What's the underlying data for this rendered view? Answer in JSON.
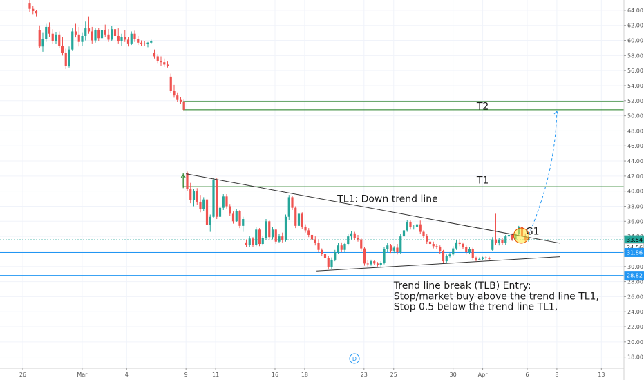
{
  "chart_data": {
    "type": "candlestick",
    "y_axis": {
      "ylim": [
        16.5,
        65
      ],
      "ticks": [
        "18.00",
        "20.00",
        "22.00",
        "24.00",
        "26.00",
        "28.00",
        "30.00",
        "32.00",
        "34.00",
        "36.00",
        "38.00",
        "40.00",
        "42.00",
        "44.00",
        "46.00",
        "48.00",
        "50.00",
        "52.00",
        "54.00",
        "56.00",
        "58.00",
        "60.00",
        "62.00",
        "64.00"
      ],
      "tick_values": [
        18,
        20,
        22,
        24,
        26,
        28,
        30,
        32,
        34,
        36,
        38,
        40,
        42,
        44,
        46,
        48,
        50,
        52,
        54,
        56,
        58,
        60,
        62,
        64
      ],
      "price_tags": [
        {
          "value": 33.54,
          "label": "33.54",
          "color": "#26a69a",
          "text_color": "#000000"
        },
        {
          "value": 32.55,
          "label": "24:56",
          "color": "#ffffff",
          "text_color": "#333333"
        },
        {
          "value": 31.86,
          "label": "31.86",
          "color": "#2196f3",
          "text_color": "#ffffff"
        },
        {
          "value": 28.82,
          "label": "28.82",
          "color": "#2196f3",
          "text_color": "#ffffff"
        }
      ]
    },
    "x_axis": {
      "labels": [
        {
          "i": 0,
          "t": "26"
        },
        {
          "i": 4,
          "t": "Mar"
        },
        {
          "i": 7,
          "t": "4"
        },
        {
          "i": 11,
          "t": "9"
        },
        {
          "i": 13,
          "t": "11"
        },
        {
          "i": 17,
          "t": "16"
        },
        {
          "i": 19,
          "t": "18"
        },
        {
          "i": 23,
          "t": "23"
        },
        {
          "i": 25,
          "t": "25"
        },
        {
          "i": 29,
          "t": "30"
        },
        {
          "i": 31,
          "t": "Apr"
        },
        {
          "i": 34,
          "t": "6"
        },
        {
          "i": 36,
          "t": "8"
        },
        {
          "i": 39,
          "t": "13"
        }
      ]
    },
    "candles": [
      [
        64.9,
        65.5,
        63.8,
        64.2
      ],
      [
        64.2,
        64.6,
        63.5,
        63.9
      ],
      [
        63.9,
        64.0,
        63.2,
        63.6
      ],
      [
        61.4,
        62.0,
        59.0,
        59.2
      ],
      [
        59.2,
        61.0,
        58.5,
        60.2
      ],
      [
        60.2,
        62.2,
        59.8,
        61.8
      ],
      [
        61.8,
        62.4,
        60.5,
        60.9
      ],
      [
        60.9,
        61.5,
        59.5,
        59.9
      ],
      [
        59.9,
        61.1,
        59.5,
        60.8
      ],
      [
        60.8,
        61.2,
        59.0,
        59.3
      ],
      [
        59.3,
        60.5,
        58.0,
        58.4
      ],
      [
        58.4,
        58.9,
        56.2,
        56.6
      ],
      [
        56.6,
        59.2,
        56.4,
        58.8
      ],
      [
        58.8,
        61.6,
        58.6,
        61.2
      ],
      [
        61.2,
        62.2,
        60.4,
        60.8
      ],
      [
        60.8,
        61.8,
        59.2,
        59.8
      ],
      [
        59.8,
        61.0,
        59.3,
        60.6
      ],
      [
        60.6,
        62.5,
        60.0,
        61.6
      ],
      [
        61.6,
        63.2,
        60.9,
        61.2
      ],
      [
        61.2,
        61.8,
        59.6,
        60.0
      ],
      [
        60.0,
        61.6,
        59.7,
        61.4
      ],
      [
        61.4,
        61.7,
        59.9,
        60.3
      ],
      [
        60.3,
        61.8,
        60.0,
        61.4
      ],
      [
        61.4,
        62.1,
        60.5,
        60.8
      ],
      [
        60.8,
        61.5,
        59.8,
        60.1
      ],
      [
        60.1,
        61.9,
        59.9,
        61.5
      ],
      [
        61.5,
        62.0,
        60.2,
        60.6
      ],
      [
        60.6,
        61.6,
        59.6,
        59.9
      ],
      [
        59.9,
        60.9,
        59.3,
        60.5
      ],
      [
        60.5,
        61.4,
        59.8,
        60.1
      ],
      [
        60.1,
        60.5,
        59.2,
        59.6
      ],
      [
        59.6,
        61.2,
        59.4,
        60.9
      ],
      [
        60.9,
        61.3,
        59.8,
        60.2
      ],
      [
        60.2,
        60.6,
        59.4,
        59.7
      ],
      [
        59.7,
        60.0,
        59.3,
        59.6
      ],
      [
        59.6,
        59.9,
        59.3,
        59.5
      ],
      [
        59.5,
        59.8,
        59.1,
        59.7
      ],
      [
        59.7,
        60.1,
        59.5,
        59.9
      ],
      [
        58.4,
        58.8,
        57.6,
        57.9
      ],
      [
        57.9,
        58.2,
        57.0,
        57.3
      ],
      [
        57.3,
        57.9,
        56.6,
        57.1
      ],
      [
        57.1,
        57.6,
        56.5,
        56.8
      ],
      [
        56.8,
        57.2,
        56.4,
        56.6
      ],
      [
        55.2,
        55.6,
        53.0,
        53.3
      ],
      [
        53.3,
        54.1,
        52.4,
        52.7
      ],
      [
        52.7,
        53.1,
        51.8,
        52.1
      ],
      [
        52.1,
        52.5,
        51.6,
        51.9
      ],
      [
        51.9,
        52.2,
        50.6,
        50.8
      ],
      [
        42.4,
        42.6,
        40.0,
        40.3
      ],
      [
        40.3,
        41.1,
        38.4,
        38.8
      ],
      [
        38.8,
        40.3,
        38.0,
        40.0
      ],
      [
        40.0,
        40.4,
        38.2,
        38.6
      ],
      [
        38.6,
        39.5,
        37.2,
        37.6
      ],
      [
        37.6,
        39.2,
        37.4,
        38.9
      ],
      [
        38.9,
        39.2,
        35.0,
        35.5
      ],
      [
        35.5,
        36.9,
        34.6,
        36.6
      ],
      [
        36.6,
        41.8,
        36.4,
        41.5
      ],
      [
        41.5,
        41.7,
        36.3,
        36.6
      ],
      [
        36.6,
        38.2,
        36.3,
        37.8
      ],
      [
        37.8,
        39.6,
        37.5,
        39.3
      ],
      [
        39.3,
        39.6,
        37.7,
        38.0
      ],
      [
        38.0,
        38.3,
        36.7,
        37.0
      ],
      [
        37.0,
        37.3,
        35.7,
        36.0
      ],
      [
        36.0,
        37.6,
        35.9,
        37.4
      ],
      [
        37.4,
        37.5,
        35.1,
        35.4
      ],
      [
        35.4,
        36.6,
        34.6,
        36.3
      ],
      [
        33.2,
        33.6,
        32.6,
        32.9
      ],
      [
        32.9,
        34.0,
        32.6,
        33.7
      ],
      [
        33.7,
        33.9,
        32.6,
        32.9
      ],
      [
        32.9,
        35.2,
        32.7,
        34.9
      ],
      [
        34.9,
        35.1,
        32.7,
        33.0
      ],
      [
        33.0,
        34.1,
        32.8,
        33.8
      ],
      [
        33.8,
        36.3,
        33.6,
        36.0
      ],
      [
        36.0,
        36.2,
        33.5,
        33.9
      ],
      [
        33.9,
        35.2,
        33.6,
        34.9
      ],
      [
        34.9,
        35.0,
        33.0,
        33.3
      ],
      [
        33.3,
        34.3,
        33.1,
        34.0
      ],
      [
        34.0,
        34.5,
        33.2,
        33.5
      ],
      [
        33.5,
        36.9,
        33.3,
        36.6
      ],
      [
        36.6,
        39.5,
        36.2,
        39.2
      ],
      [
        39.2,
        39.4,
        37.5,
        37.8
      ],
      [
        37.8,
        38.0,
        35.1,
        35.4
      ],
      [
        35.4,
        37.3,
        35.2,
        37.0
      ],
      [
        37.0,
        37.2,
        35.0,
        35.3
      ],
      [
        35.3,
        35.6,
        34.5,
        34.8
      ],
      [
        34.8,
        35.1,
        33.9,
        34.2
      ],
      [
        34.2,
        34.5,
        33.3,
        33.6
      ],
      [
        33.6,
        34.0,
        32.8,
        33.1
      ],
      [
        33.1,
        33.6,
        31.9,
        32.2
      ],
      [
        32.2,
        32.4,
        31.4,
        31.7
      ],
      [
        31.7,
        32.0,
        30.8,
        31.1
      ],
      [
        31.1,
        31.4,
        29.6,
        29.9
      ],
      [
        29.9,
        31.2,
        29.7,
        30.9
      ],
      [
        30.9,
        32.2,
        30.7,
        31.9
      ],
      [
        31.9,
        33.1,
        31.7,
        32.8
      ],
      [
        32.8,
        33.2,
        31.9,
        32.2
      ],
      [
        32.2,
        33.2,
        31.9,
        33.0
      ],
      [
        33.0,
        34.3,
        32.8,
        34.0
      ],
      [
        34.0,
        34.7,
        33.6,
        34.4
      ],
      [
        34.4,
        34.6,
        33.5,
        33.8
      ],
      [
        33.8,
        34.2,
        33.3,
        33.6
      ],
      [
        33.6,
        33.8,
        32.1,
        32.4
      ],
      [
        32.4,
        32.6,
        30.1,
        30.4
      ],
      [
        30.4,
        30.8,
        30.0,
        30.3
      ],
      [
        30.3,
        30.9,
        30.1,
        30.7
      ],
      [
        30.7,
        30.8,
        30.2,
        30.4
      ],
      [
        30.4,
        30.6,
        30.0,
        30.2
      ],
      [
        30.2,
        30.7,
        29.9,
        30.5
      ],
      [
        30.5,
        32.6,
        30.3,
        32.3
      ],
      [
        32.3,
        33.1,
        31.9,
        32.8
      ],
      [
        32.8,
        33.0,
        31.8,
        32.1
      ],
      [
        32.1,
        32.7,
        31.8,
        32.5
      ],
      [
        32.5,
        33.0,
        31.6,
        31.9
      ],
      [
        31.9,
        34.3,
        31.7,
        34.0
      ],
      [
        34.0,
        35.1,
        33.7,
        34.8
      ],
      [
        34.8,
        36.2,
        34.6,
        35.9
      ],
      [
        35.9,
        36.1,
        34.9,
        35.2
      ],
      [
        35.2,
        35.5,
        34.9,
        35.3
      ],
      [
        35.3,
        35.9,
        34.8,
        35.6
      ],
      [
        35.6,
        36.1,
        34.3,
        34.6
      ],
      [
        34.6,
        34.8,
        33.8,
        34.1
      ],
      [
        34.1,
        34.3,
        33.0,
        33.3
      ],
      [
        33.3,
        33.6,
        32.7,
        33.0
      ],
      [
        33.0,
        33.3,
        32.4,
        32.7
      ],
      [
        32.7,
        33.0,
        32.3,
        32.6
      ],
      [
        32.6,
        32.8,
        31.7,
        32.0
      ],
      [
        32.0,
        32.2,
        30.4,
        30.7
      ],
      [
        30.7,
        31.6,
        30.5,
        31.4
      ],
      [
        31.4,
        31.8,
        31.2,
        31.6
      ],
      [
        31.6,
        32.7,
        31.4,
        32.4
      ],
      [
        32.4,
        33.5,
        32.2,
        33.2
      ],
      [
        33.2,
        33.6,
        32.7,
        33.0
      ],
      [
        33.0,
        33.2,
        32.3,
        32.6
      ],
      [
        32.6,
        32.8,
        31.6,
        31.9
      ],
      [
        31.9,
        32.6,
        31.7,
        32.3
      ],
      [
        32.3,
        32.5,
        30.8,
        31.1
      ],
      [
        31.1,
        31.3,
        30.7,
        30.9
      ],
      [
        30.9,
        31.2,
        30.8,
        31.0
      ],
      [
        31.0,
        31.3,
        30.8,
        31.2
      ],
      [
        31.2,
        31.4,
        30.9,
        31.1
      ],
      [
        31.1,
        31.3,
        30.8,
        31.0
      ],
      [
        32.2,
        33.9,
        32.0,
        33.6
      ],
      [
        33.6,
        37.0,
        32.9,
        33.1
      ],
      [
        33.1,
        33.8,
        32.8,
        33.5
      ],
      [
        33.5,
        33.8,
        32.9,
        33.1
      ],
      [
        33.1,
        34.2,
        32.9,
        34.0
      ],
      [
        34.0,
        34.4,
        33.6,
        34.2
      ],
      [
        34.2,
        34.4,
        33.4,
        33.6
      ],
      [
        33.6,
        34.4,
        33.4,
        34.3
      ],
      [
        34.3,
        35.4,
        34.0,
        35.2
      ],
      [
        35.2,
        35.4,
        33.8,
        34.0
      ],
      [
        34.0,
        34.4,
        33.3,
        33.5
      ],
      [
        33.5,
        34.0,
        33.3,
        33.7
      ]
    ],
    "horizontal_lines": [
      {
        "value": 51.9,
        "color": "#1b7a1b"
      },
      {
        "value": 50.8,
        "color": "#1b7a1b"
      },
      {
        "value": 42.4,
        "color": "#1b7a1b"
      },
      {
        "value": 40.6,
        "color": "#1b7a1b"
      },
      {
        "value": 31.86,
        "color": "#2196f3"
      },
      {
        "value": 28.82,
        "color": "#2196f3"
      },
      {
        "value": 33.54,
        "color": "#26a69a",
        "dashed": true
      }
    ],
    "trend_lines": [
      {
        "name": "TL1",
        "i1": 11.0,
        "v1": 42.3,
        "i2": 36.2,
        "v2": 33.1,
        "color": "#333333"
      },
      {
        "name": "support",
        "i1": 19.8,
        "v1": 29.4,
        "i2": 36.2,
        "v2": 31.3,
        "color": "#333333"
      }
    ],
    "projection": {
      "i1": 34.1,
      "v1": 34.2,
      "i2": 36.0,
      "v2": 50.6,
      "color": "#2196f3"
    },
    "annotations": [
      {
        "text": "T2",
        "i": 31.0,
        "v": 51.3,
        "anchor": "middle"
      },
      {
        "text": "T1",
        "i": 31.0,
        "v": 41.5,
        "anchor": "middle"
      },
      {
        "text": "TL1: Down trend line",
        "i": 21.2,
        "v": 39.0,
        "anchor": "start"
      },
      {
        "text": "G1",
        "i": 33.9,
        "v": 34.7,
        "anchor": "start"
      },
      {
        "text": "Trend line break (TLB) Entry:",
        "i": 25.0,
        "v": 27.5,
        "anchor": "start"
      },
      {
        "text": "Stop/market buy above the trend line TL1,",
        "i": 25.0,
        "v": 26.1,
        "anchor": "start"
      },
      {
        "text": "Stop 0.5 below the trend line TL1,",
        "i": 25.0,
        "v": 24.7,
        "anchor": "start"
      }
    ],
    "circle_marker": {
      "i": 33.6,
      "v": 34.1
    },
    "bottom_marker": "D"
  }
}
